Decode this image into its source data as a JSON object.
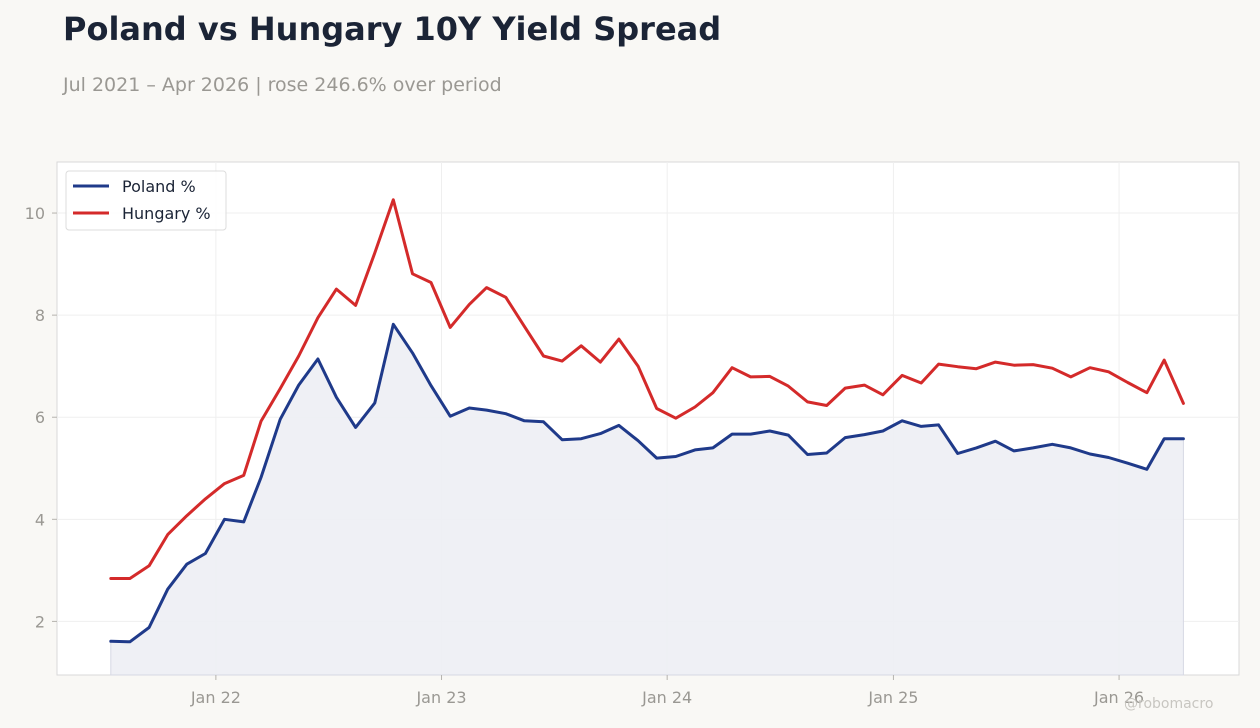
{
  "header": {
    "title": "Poland vs Hungary 10Y Yield Spread",
    "subtitle": "Jul 2021 – Apr 2026 | rose 246.6% over period"
  },
  "watermark": "@robomacro",
  "colors": {
    "poland": "#1f3a8a",
    "hungary": "#d42a2a",
    "fill": "#edeef4",
    "grid": "#efefef",
    "frame": "#d9d9d9"
  },
  "chart_data": {
    "type": "line",
    "title": "Poland vs Hungary 10Y Yield Spread",
    "subtitle": "Jul 2021 – Apr 2026 | rose 246.6% over period",
    "xlabel": "",
    "ylabel": "",
    "x_ticks": [
      "Jan 22",
      "Jan 23",
      "Jan 24",
      "Jan 25",
      "Jan 26"
    ],
    "y_ticks": [
      2,
      4,
      6,
      8,
      10
    ],
    "xlim": [
      "2021-04-19",
      "2026-07-14"
    ],
    "ylim": [
      0.95,
      11.0
    ],
    "grid": true,
    "legend": "top-left",
    "shaded_series": "Poland %",
    "x": [
      "2021-07",
      "2021-08",
      "2021-09",
      "2021-10",
      "2021-11",
      "2021-12",
      "2022-01",
      "2022-02",
      "2022-03",
      "2022-04",
      "2022-05",
      "2022-06",
      "2022-07",
      "2022-08",
      "2022-09",
      "2022-10",
      "2022-11",
      "2022-12",
      "2023-01",
      "2023-02",
      "2023-03",
      "2023-04",
      "2023-05",
      "2023-06",
      "2023-07",
      "2023-08",
      "2023-09",
      "2023-10",
      "2023-11",
      "2023-12",
      "2024-01",
      "2024-02",
      "2024-03",
      "2024-04",
      "2024-05",
      "2024-06",
      "2024-07",
      "2024-08",
      "2024-09",
      "2024-10",
      "2024-11",
      "2024-12",
      "2025-01",
      "2025-02",
      "2025-03",
      "2025-04",
      "2025-05",
      "2025-06",
      "2025-07",
      "2025-08",
      "2025-09",
      "2025-10",
      "2025-11",
      "2025-12",
      "2026-01",
      "2026-02",
      "2026-03",
      "2026-04"
    ],
    "series": [
      {
        "name": "Poland %",
        "values": [
          1.61,
          1.6,
          1.88,
          2.63,
          3.12,
          3.33,
          4.0,
          3.95,
          4.82,
          5.96,
          6.63,
          7.14,
          6.39,
          5.8,
          6.28,
          7.82,
          7.26,
          6.62,
          6.02,
          6.18,
          6.14,
          6.07,
          5.93,
          5.91,
          5.56,
          5.58,
          5.68,
          5.84,
          5.54,
          5.2,
          5.23,
          5.36,
          5.4,
          5.67,
          5.67,
          5.73,
          5.65,
          5.27,
          5.3,
          5.6,
          5.66,
          5.73,
          5.93,
          5.82,
          5.85,
          5.29,
          5.4,
          5.53,
          5.34,
          5.4,
          5.47,
          5.4,
          5.28,
          5.21,
          5.1,
          4.98,
          5.58,
          5.58
        ]
      },
      {
        "name": "Hungary %",
        "values": [
          2.84,
          2.84,
          3.09,
          3.7,
          4.07,
          4.4,
          4.7,
          4.86,
          5.92,
          6.56,
          7.2,
          7.95,
          8.51,
          8.19,
          9.22,
          10.26,
          8.81,
          8.64,
          7.76,
          8.21,
          8.54,
          8.35,
          7.78,
          7.2,
          7.1,
          7.4,
          7.08,
          7.53,
          7.0,
          6.17,
          5.98,
          6.2,
          6.48,
          6.97,
          6.79,
          6.8,
          6.61,
          6.3,
          6.23,
          6.57,
          6.63,
          6.44,
          6.82,
          6.67,
          7.04,
          6.99,
          6.95,
          7.08,
          7.02,
          7.03,
          6.96,
          6.79,
          6.97,
          6.89,
          6.68,
          6.48,
          7.12,
          6.27
        ]
      }
    ]
  }
}
